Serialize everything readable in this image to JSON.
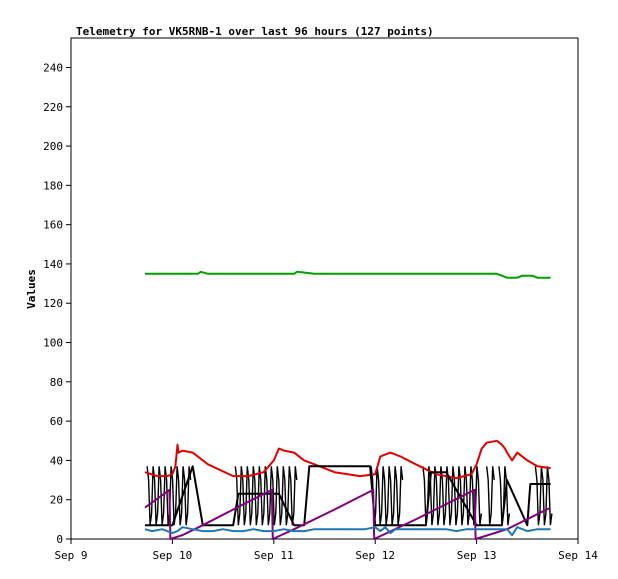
{
  "chart_data": {
    "type": "line",
    "title": "Telemetry for VK5RNB-1 over last 96 hours (127 points)",
    "xlabel": "",
    "ylabel": "Values",
    "x_ticks": [
      "Sep 9",
      "Sep 10",
      "Sep 11",
      "Sep 12",
      "Sep 13",
      "Sep 14"
    ],
    "xlim": [
      0,
      5
    ],
    "ylim": [
      0,
      255
    ],
    "y_ticks": [
      0,
      20,
      40,
      60,
      80,
      100,
      120,
      140,
      160,
      180,
      200,
      220,
      240
    ],
    "grid": false,
    "legend": "none",
    "series": [
      {
        "color": "#00a000",
        "x": [
          0.73,
          0.9,
          1.1,
          1.25,
          1.28,
          1.35,
          1.6,
          2.0,
          2.2,
          2.23,
          2.4,
          3.0,
          3.5,
          4.0,
          4.2,
          4.25,
          4.3,
          4.4,
          4.45,
          4.55,
          4.6,
          4.73
        ],
        "y": [
          135,
          135,
          135,
          135,
          136,
          135,
          135,
          135,
          135,
          136,
          135,
          135,
          135,
          135,
          135,
          134,
          133,
          133,
          134,
          134,
          133,
          133
        ]
      },
      {
        "color": "#e00000",
        "x": [
          0.73,
          0.85,
          0.95,
          1.0,
          1.03,
          1.05,
          1.06,
          1.1,
          1.2,
          1.35,
          1.6,
          1.75,
          1.9,
          2.0,
          2.05,
          2.1,
          2.2,
          2.3,
          2.4,
          2.6,
          2.85,
          3.0,
          3.05,
          3.15,
          3.25,
          3.4,
          3.6,
          3.8,
          3.95,
          4.0,
          4.05,
          4.1,
          4.2,
          4.25,
          4.28,
          4.3,
          4.35,
          4.4,
          4.5,
          4.6,
          4.73
        ],
        "y": [
          34,
          32,
          32,
          33,
          37,
          48,
          44,
          45,
          44,
          38,
          32,
          32,
          34,
          40,
          46,
          45,
          44,
          40,
          38,
          34,
          32,
          33,
          42,
          44,
          42,
          38,
          33,
          31,
          33,
          38,
          46,
          49,
          50,
          48,
          46,
          44,
          40,
          44,
          40,
          37,
          36
        ]
      },
      {
        "color": "#000000",
        "x": [
          0.73,
          1.0,
          1.2,
          1.3,
          1.6,
          1.65,
          2.05,
          2.2,
          2.3,
          2.35,
          2.95,
          3.0,
          3.3,
          3.5,
          3.55,
          3.7,
          4.0,
          4.25,
          4.3,
          4.5,
          4.53,
          4.73
        ],
        "y": [
          7,
          7,
          37,
          7,
          7,
          23,
          23,
          7,
          7,
          37,
          37,
          7,
          7,
          7,
          34,
          34,
          7,
          7,
          30,
          7,
          28,
          28
        ]
      },
      {
        "color": "#800080",
        "x": [
          0.73,
          0.97,
          0.98,
          1.1,
          1.3,
          1.6,
          1.98,
          1.99,
          2.2,
          2.6,
          2.98,
          2.99,
          3.4,
          3.98,
          3.99,
          4.3,
          4.73
        ],
        "y": [
          16,
          25,
          0,
          2,
          7,
          15,
          25,
          0,
          5,
          15,
          25,
          0,
          10,
          25,
          0,
          5,
          16
        ]
      },
      {
        "color": "#1f77b4",
        "x": [
          0.73,
          0.8,
          0.9,
          1.0,
          1.05,
          1.1,
          1.2,
          1.3,
          1.4,
          1.5,
          1.6,
          1.7,
          1.8,
          1.9,
          2.0,
          2.1,
          2.2,
          2.3,
          2.4,
          2.5,
          2.6,
          2.7,
          2.8,
          2.9,
          3.0,
          3.05,
          3.1,
          3.15,
          3.2,
          3.3,
          3.4,
          3.5,
          3.6,
          3.7,
          3.8,
          3.9,
          4.0,
          4.1,
          4.2,
          4.3,
          4.35,
          4.4,
          4.5,
          4.6,
          4.73
        ],
        "y": [
          5,
          4,
          5,
          3,
          4,
          6,
          5,
          4,
          4,
          5,
          4,
          4,
          5,
          4,
          4,
          5,
          4,
          4,
          5,
          5,
          5,
          5,
          5,
          5,
          6,
          4,
          6,
          3,
          5,
          5,
          5,
          5,
          5,
          5,
          4,
          5,
          5,
          5,
          5,
          5,
          2,
          6,
          4,
          5,
          5
        ]
      }
    ],
    "bursts": [
      [
        0.75,
        1.18
      ],
      [
        1.62,
        2.24
      ],
      [
        2.96,
        3.26
      ],
      [
        3.47,
        4.06
      ],
      [
        4.1,
        4.16
      ],
      [
        4.22,
        4.32
      ],
      [
        4.58,
        4.73
      ]
    ]
  }
}
